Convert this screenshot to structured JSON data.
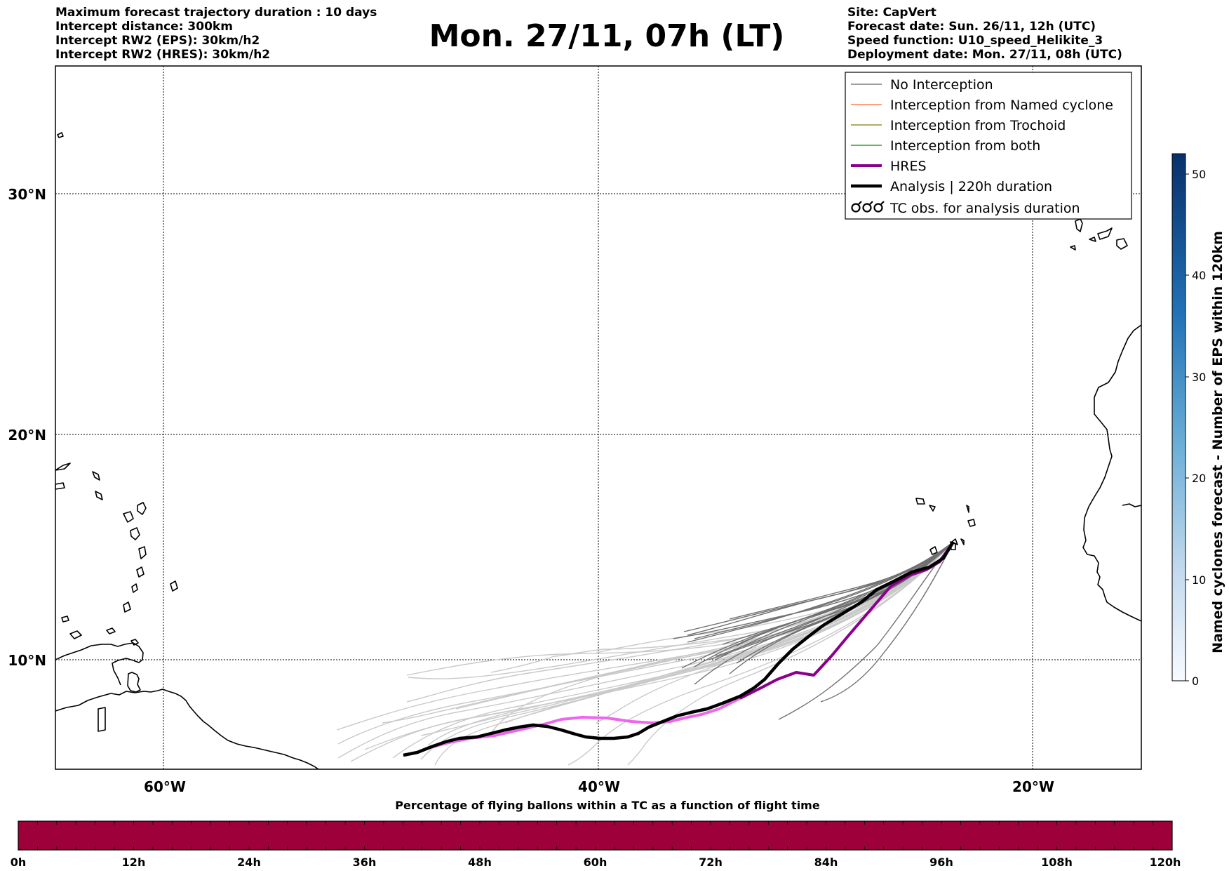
{
  "header_left": [
    "Maximum forecast trajectory duration : 10 days",
    "Intercept distance: 300km",
    "Intercept RW2 (EPS):  30km/h2",
    "Intercept RW2 (HRES): 30km/h2"
  ],
  "title": "Mon. 27/11, 07h (LT)",
  "header_right": [
    "Site: CapVert",
    "Forecast date: Sun. 26/11, 12h (UTC)",
    "Speed function: U10_speed_Helikite_3",
    "Deployment date: Mon. 27/11, 08h (UTC)"
  ],
  "map": {
    "lat_labels": [
      "30°N",
      "20°N",
      "10°N"
    ],
    "lon_labels": [
      "60°W",
      "40°W",
      "20°W"
    ]
  },
  "legend": [
    {
      "label": "No Interception",
      "color": "#808080",
      "style": "thin"
    },
    {
      "label": "Interception from Named cyclone",
      "color": "#ff7f50",
      "style": "thin"
    },
    {
      "label": "Interception from Trochoid",
      "color": "#9a8c3c",
      "style": "thin"
    },
    {
      "label": "Interception from both",
      "color": "#2ca02c",
      "style": "thin"
    },
    {
      "label": "HRES",
      "color": "#8b008b",
      "style": "thick"
    },
    {
      "label": "Analysis | 220h duration",
      "color": "#000000",
      "style": "thick"
    },
    {
      "label": "TC obs. for analysis duration",
      "color": "#000000",
      "style": "symbol"
    }
  ],
  "colorbar": {
    "label": "Named cyclones forecast - Number of EPS within 120km",
    "ticks": [
      "0",
      "10",
      "20",
      "30",
      "40",
      "50"
    ],
    "color_low": "#deebf7",
    "color_high": "#08306b"
  },
  "bottom_bar": {
    "title": "Percentage of flying ballons within a TC as a function of flight time",
    "color": "#9e003a",
    "ticks": [
      "0h",
      "12h",
      "24h",
      "36h",
      "48h",
      "60h",
      "72h",
      "84h",
      "96h",
      "108h",
      "120h"
    ]
  }
}
